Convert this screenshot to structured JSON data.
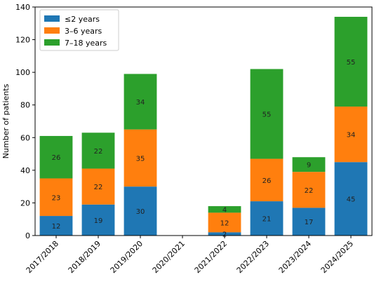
{
  "chart_data": {
    "type": "bar",
    "stacked": true,
    "categories": [
      "2017/2018",
      "2018/2019",
      "2019/2020",
      "2020/2021",
      "2021/2022",
      "2022/2023",
      "2023/2024",
      "2024/2025"
    ],
    "series": [
      {
        "name": "≤2 years",
        "color": "#1f77b4",
        "values": [
          12,
          19,
          30,
          0,
          2,
          21,
          17,
          45
        ]
      },
      {
        "name": "3–6 years",
        "color": "#ff7f0e",
        "values": [
          23,
          22,
          35,
          0,
          12,
          26,
          22,
          34
        ]
      },
      {
        "name": "7–18 years",
        "color": "#2ca02c",
        "values": [
          26,
          22,
          34,
          0,
          4,
          55,
          9,
          55
        ]
      }
    ],
    "data_labels": [
      [
        "12",
        "19",
        "30",
        "",
        "2",
        "21",
        "17",
        "45"
      ],
      [
        "23",
        "22",
        "35",
        "",
        "12",
        "26",
        "22",
        "34"
      ],
      [
        "26",
        "22",
        "34",
        "",
        "4",
        "55",
        "9",
        "55"
      ]
    ],
    "ylabel": "Number of patients",
    "xlabel": "",
    "ylim": [
      0,
      140
    ],
    "yticks": [
      "0",
      "20",
      "40",
      "60",
      "80",
      "100",
      "120",
      "140"
    ],
    "grid": false,
    "legend_position": "top-left"
  }
}
